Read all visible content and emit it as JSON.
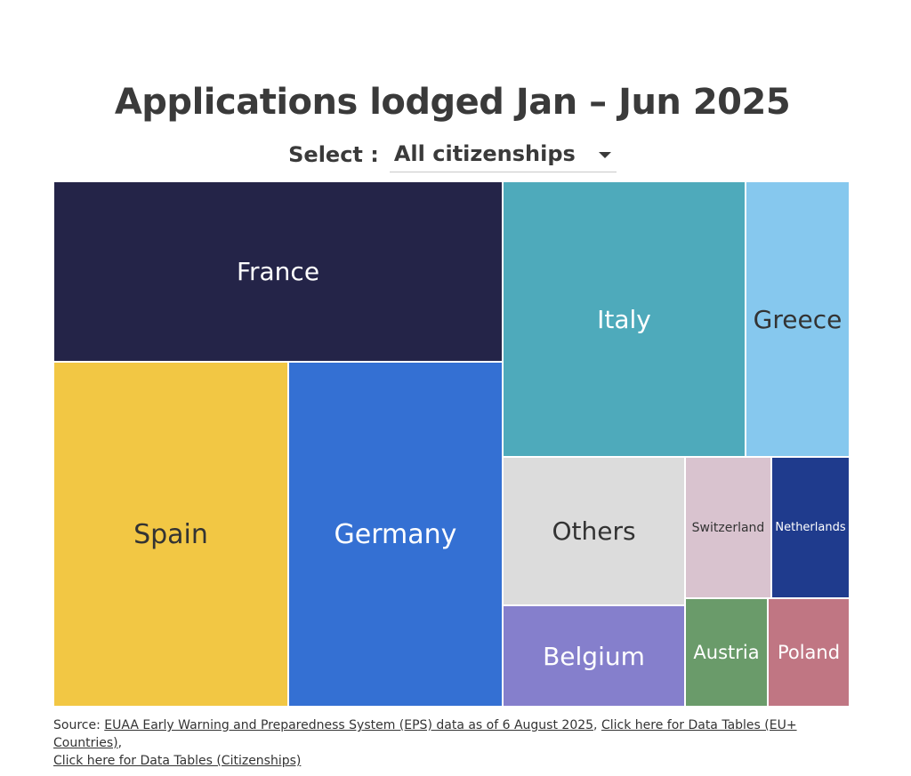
{
  "title": "Applications lodged Jan – Jun 2025",
  "select": {
    "label": "Select :",
    "value": "All citizenships"
  },
  "chart_data": {
    "type": "treemap",
    "title": "Applications lodged Jan – Jun 2025",
    "items": [
      {
        "name": "France",
        "color": "#242448",
        "text_color": "#ffffff"
      },
      {
        "name": "Spain",
        "color": "#f2c744",
        "text_color": "#333333"
      },
      {
        "name": "Germany",
        "color": "#3470d3",
        "text_color": "#ffffff"
      },
      {
        "name": "Italy",
        "color": "#4eaabb",
        "text_color": "#ffffff"
      },
      {
        "name": "Greece",
        "color": "#86c8ee",
        "text_color": "#333333"
      },
      {
        "name": "Others",
        "color": "#dcdcdc",
        "text_color": "#333333"
      },
      {
        "name": "Belgium",
        "color": "#857fcc",
        "text_color": "#ffffff"
      },
      {
        "name": "Switzerland",
        "color": "#d9c3cf",
        "text_color": "#333333"
      },
      {
        "name": "Netherlands",
        "color": "#1f3b8d",
        "text_color": "#ffffff"
      },
      {
        "name": "Austria",
        "color": "#6a9b6a",
        "text_color": "#ffffff"
      },
      {
        "name": "Poland",
        "color": "#c07683",
        "text_color": "#ffffff"
      }
    ]
  },
  "source": {
    "prefix": "Source: ",
    "link1": "EUAA Early Warning and Preparedness System (EPS) data as of 6 August 2025",
    "sep1": ", ",
    "link2": "Click here for Data Tables (EU+ Countries)",
    "sep2": ",",
    "link3": "Click here for Data Tables (Citizenships)"
  }
}
